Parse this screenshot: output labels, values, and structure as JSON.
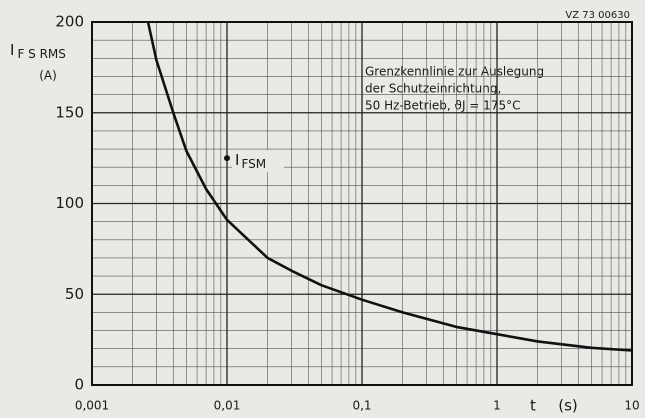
{
  "chart_data": {
    "type": "line",
    "code": "VZ 73 00630",
    "ylabel": {
      "main": "I",
      "sub": "F S RMS"
    },
    "yunit": "(A)",
    "xlabel": "t",
    "xunit": "(s)",
    "annotation": [
      "Grenzkennlinie zur Auslegung",
      "der Schutzeinrichtung,",
      "50 Hz-Betrieb, ϑJ = 175°C"
    ],
    "xscale": "log",
    "grid": true,
    "xlim": [
      0.001,
      10
    ],
    "ylim": [
      0,
      200
    ],
    "xticks": [
      {
        "value": 0.001,
        "label": "0,001"
      },
      {
        "value": 0.01,
        "label": "0,01"
      },
      {
        "value": 0.1,
        "label": "0,1"
      },
      1,
      10
    ],
    "yticks": [
      0,
      50,
      100,
      150,
      200
    ],
    "series": [
      {
        "color": "#111111",
        "x": [
          0.0026,
          0.003,
          0.004,
          0.005,
          0.007,
          0.01,
          0.02,
          0.03,
          0.05,
          0.1,
          0.2,
          0.5,
          1,
          2,
          5,
          10
        ],
        "values": [
          200,
          179,
          150,
          129,
          108,
          91,
          70,
          63,
          55,
          47,
          40,
          32,
          28,
          24,
          20.5,
          19
        ]
      }
    ],
    "marker": {
      "x": 0.01,
      "y": 125,
      "label": {
        "main": "I",
        "sub": "FSM"
      }
    }
  }
}
